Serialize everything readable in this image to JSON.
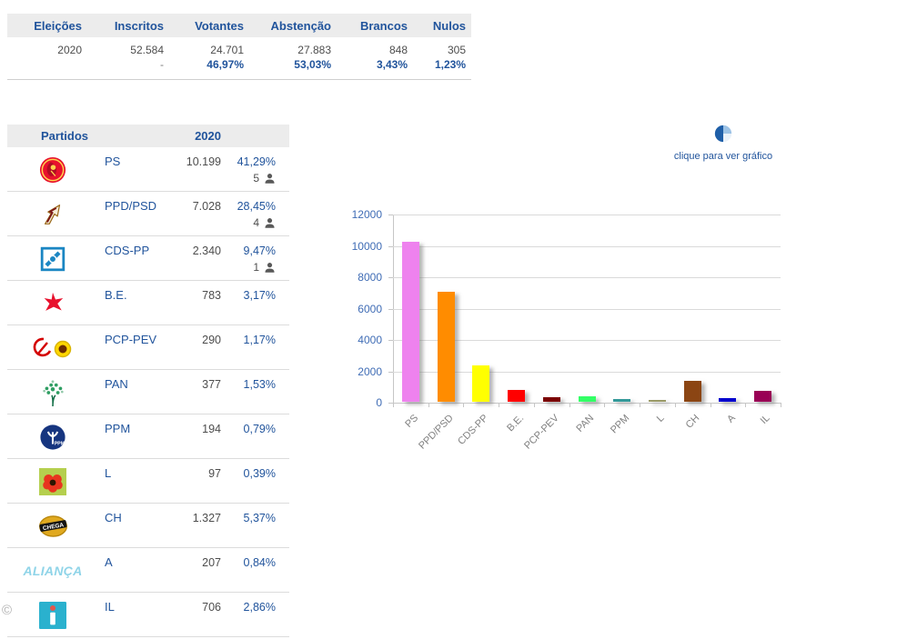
{
  "summary_table": {
    "headers": [
      "Eleições",
      "Inscritos",
      "Votantes",
      "Abstenção",
      "Brancos",
      "Nulos"
    ],
    "values": [
      "2020",
      "52.584",
      "24.701",
      "27.883",
      "848",
      "305"
    ],
    "percents": [
      "",
      "-",
      "46,97%",
      "53,03%",
      "3,43%",
      "1,23%"
    ]
  },
  "party_table": {
    "header_partidos": "Partidos",
    "header_year": "2020",
    "rows": [
      {
        "party": "PS",
        "votes": "10.199",
        "percent": "41,29%",
        "seats": "5",
        "logo": "ps"
      },
      {
        "party": "PPD/PSD",
        "votes": "7.028",
        "percent": "28,45%",
        "seats": "4",
        "logo": "psd"
      },
      {
        "party": "CDS-PP",
        "votes": "2.340",
        "percent": "9,47%",
        "seats": "1",
        "logo": "cds"
      },
      {
        "party": "B.E.",
        "votes": "783",
        "percent": "3,17%",
        "seats": "",
        "logo": "be"
      },
      {
        "party": "PCP-PEV",
        "votes": "290",
        "percent": "1,17%",
        "seats": "",
        "logo": "pcp"
      },
      {
        "party": "PAN",
        "votes": "377",
        "percent": "1,53%",
        "seats": "",
        "logo": "pan"
      },
      {
        "party": "PPM",
        "votes": "194",
        "percent": "0,79%",
        "seats": "",
        "logo": "ppm"
      },
      {
        "party": "L",
        "votes": "97",
        "percent": "0,39%",
        "seats": "",
        "logo": "l"
      },
      {
        "party": "CH",
        "votes": "1.327",
        "percent": "5,37%",
        "seats": "",
        "logo": "ch"
      },
      {
        "party": "A",
        "votes": "207",
        "percent": "0,84%",
        "seats": "",
        "logo": "a"
      },
      {
        "party": "IL",
        "votes": "706",
        "percent": "2,86%",
        "seats": "",
        "logo": "il"
      }
    ]
  },
  "chart_link": {
    "label": "clique para ver gráfico"
  },
  "chart_data": {
    "type": "bar",
    "title": "",
    "xlabel": "",
    "ylabel": "",
    "categories": [
      "PS",
      "PPD/PSD",
      "CDS-PP",
      "B.E.",
      "PCP-PEV",
      "PAN",
      "PPM",
      "L",
      "CH",
      "A",
      "IL"
    ],
    "values": [
      10199,
      7028,
      2340,
      783,
      290,
      377,
      194,
      97,
      1327,
      207,
      706
    ],
    "colors": [
      "#EE82EE",
      "#FF8C00",
      "#FFFF00",
      "#FF0000",
      "#7B0000",
      "#33FF66",
      "#339999",
      "#999966",
      "#8B4513",
      "#0000CD",
      "#990055"
    ],
    "ylim": [
      0,
      12000
    ],
    "ytick_step": 2000,
    "grid": true,
    "legend": false
  },
  "footer": {
    "copyright": "©"
  },
  "colors": {
    "accent_blue": "#21549c",
    "value_gray": "#4d4d4d",
    "header_bg": "#ececec",
    "pie_dark": "#1f5fa8",
    "pie_light": "#9dc3e6"
  }
}
